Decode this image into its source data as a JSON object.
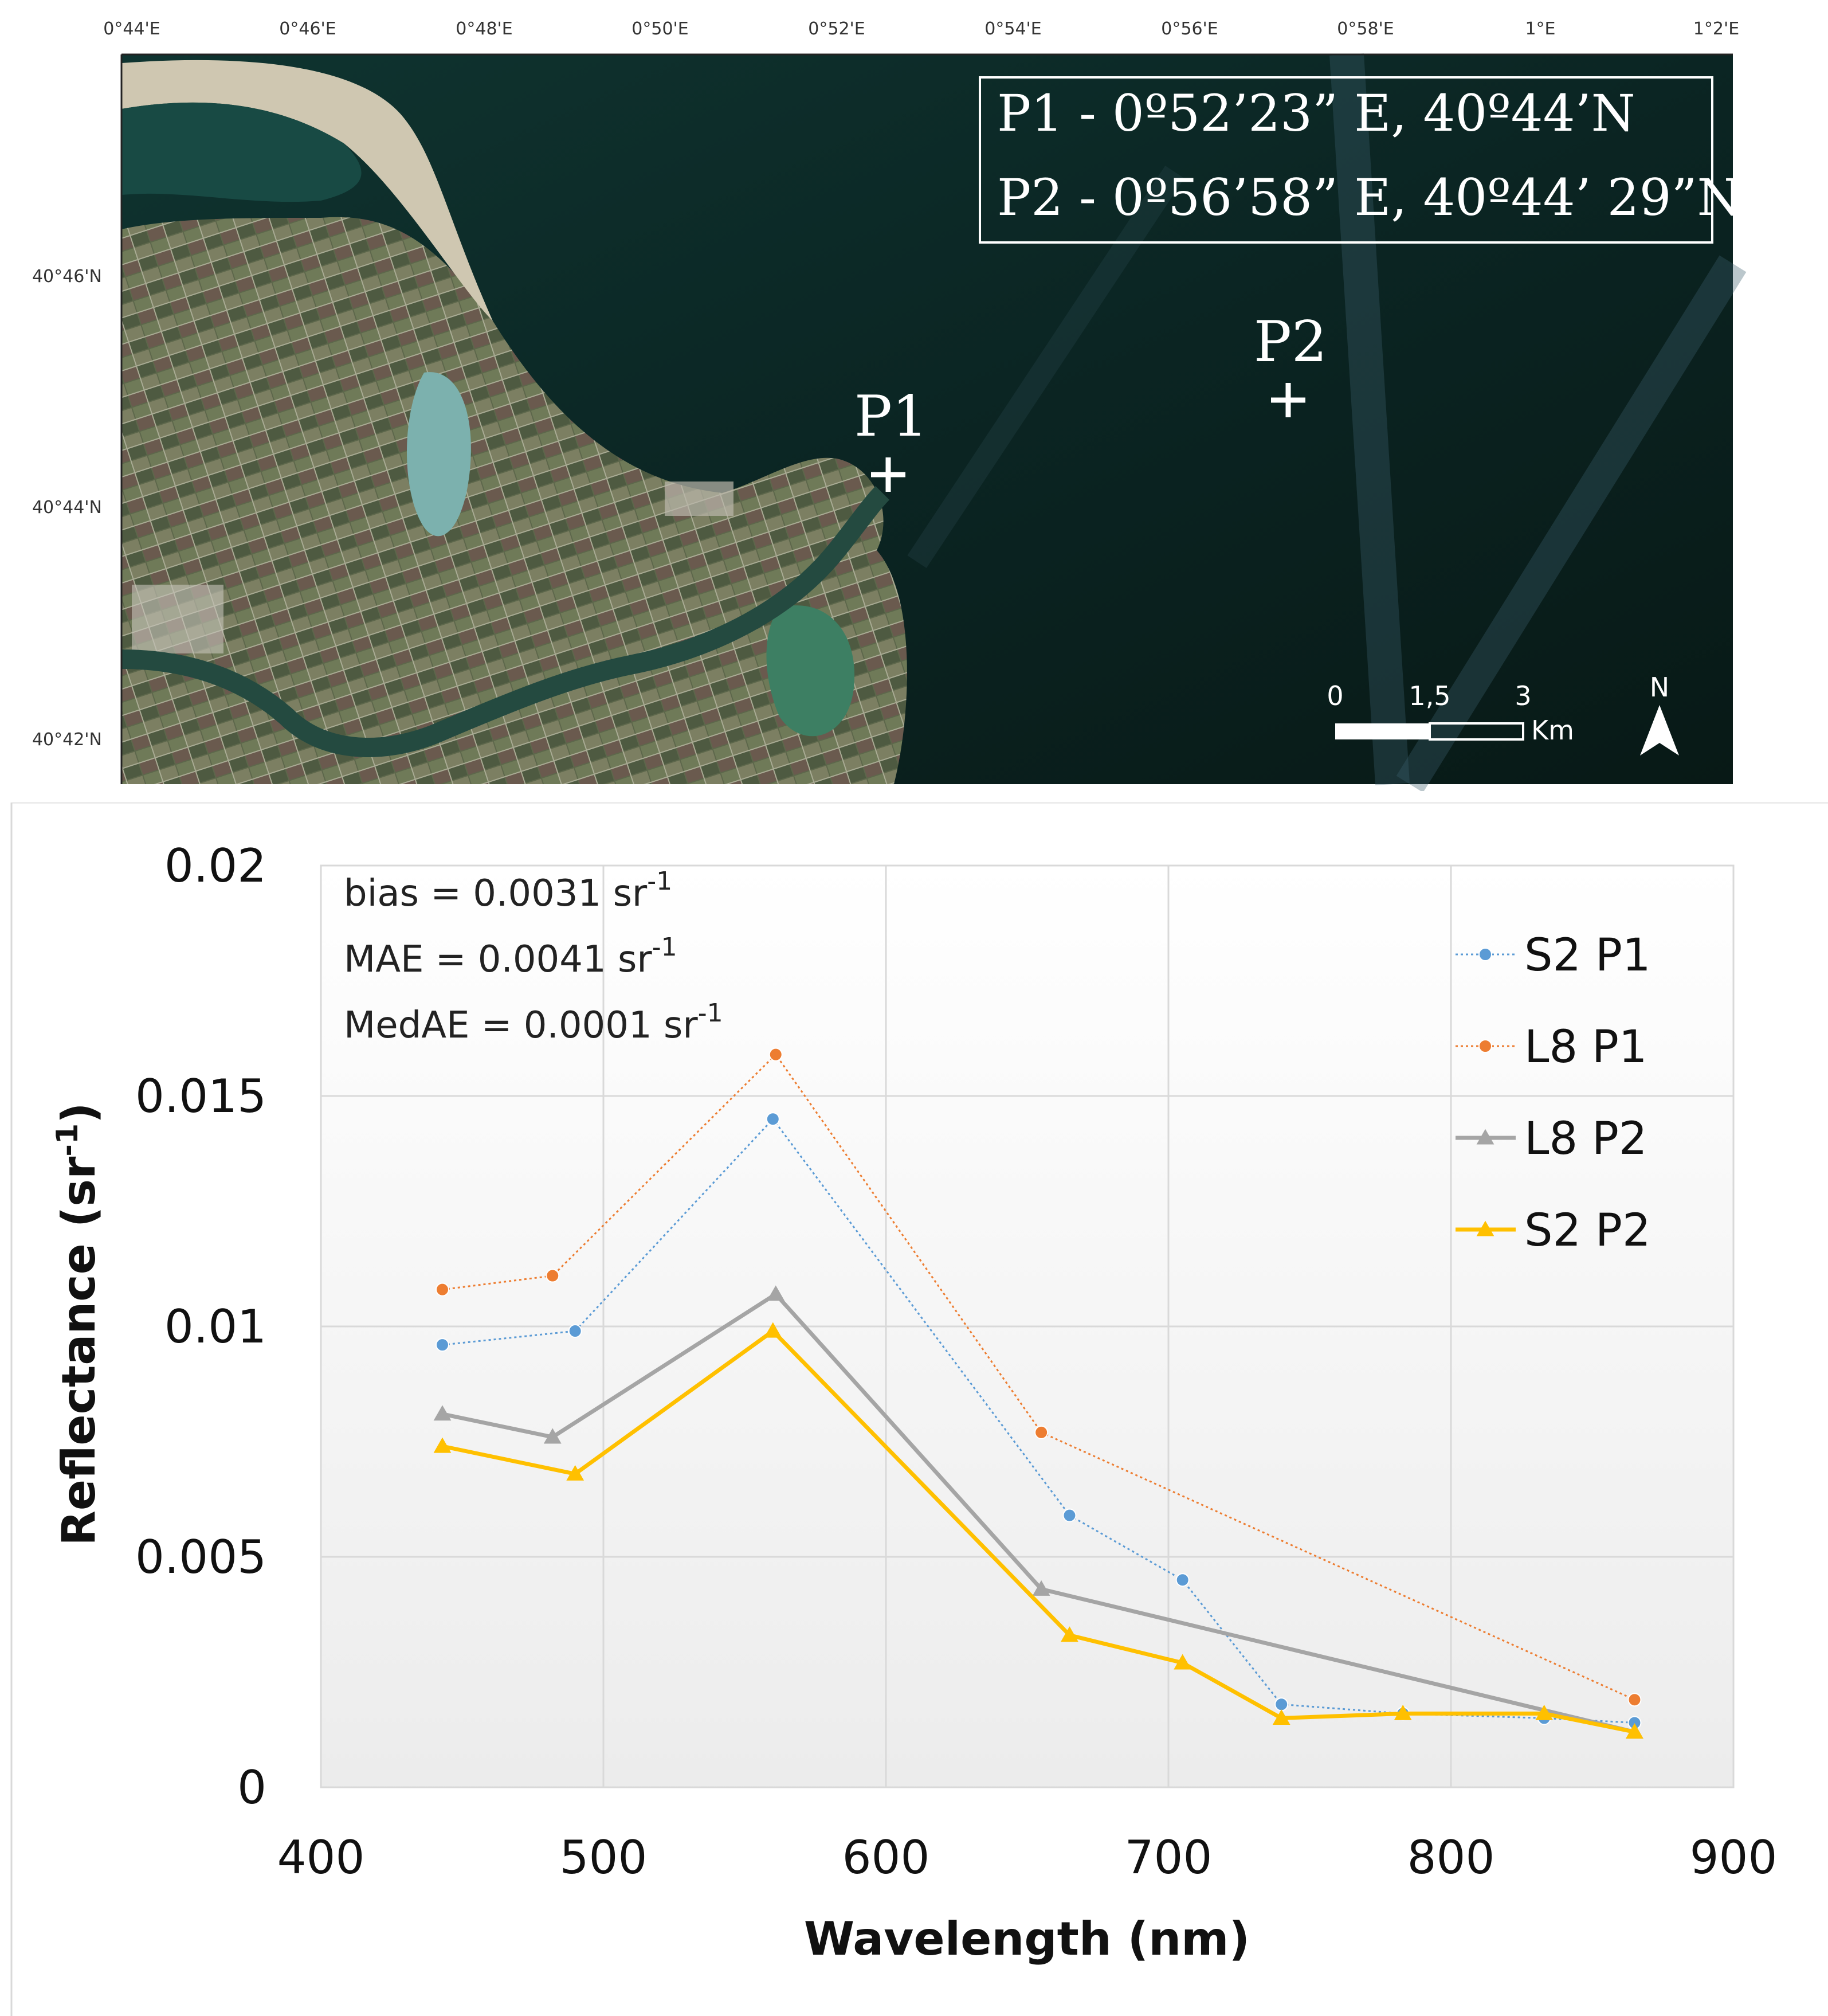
{
  "map": {
    "lon_ticks": [
      "0°44'E",
      "0°46'E",
      "0°48'E",
      "0°50'E",
      "0°52'E",
      "0°54'E",
      "0°56'E",
      "0°58'E",
      "1°E",
      "1°2'E"
    ],
    "lat_ticks": [
      "40°46'N",
      "40°44'N",
      "40°42'N"
    ],
    "points": [
      {
        "label": "P1",
        "coords": "P1 - 0º52’23” E, 40º44’N"
      },
      {
        "label": "P2",
        "coords": "P2 - 0º56’58” E, 40º44’ 29”N"
      }
    ],
    "scale_bar": {
      "labels": [
        "0",
        "1,5",
        "3"
      ],
      "unit": "Km"
    },
    "north_label": "N",
    "colors": {
      "sea": "#0d2a27",
      "land": "#5f6a4c",
      "sand": "#c9c2ad",
      "lagoon": "#7fb0ae"
    }
  },
  "chart_data": {
    "type": "line",
    "xlabel": "Wavelength (nm)",
    "ylabel": "Reflectance (sr",
    "ylabel_sup": "-1",
    "ylabel_close": ")",
    "xlim": [
      400,
      900
    ],
    "ylim": [
      0,
      0.02
    ],
    "x_ticks": [
      400,
      500,
      600,
      700,
      800,
      900
    ],
    "y_ticks": [
      0,
      0.005,
      0.01,
      0.015,
      0.02
    ],
    "y_tick_labels": [
      "0",
      "0.005",
      "0.01",
      "0.015",
      "0.02"
    ],
    "grid": true,
    "legend_position": "right",
    "annotations": [
      {
        "text": "bias = 0.0031 sr",
        "sup": "-1"
      },
      {
        "text": "MAE = 0.0041 sr",
        "sup": "-1"
      },
      {
        "text": "MedAE = 0.0001 sr",
        "sup": "-1"
      }
    ],
    "series": [
      {
        "name": "S2 P1",
        "color": "#5b9bd5",
        "marker": "circle",
        "style": "dotted",
        "x": [
          443,
          490,
          560,
          665,
          705,
          740,
          783,
          833,
          865
        ],
        "y": [
          0.0096,
          0.0099,
          0.0145,
          0.0059,
          0.0045,
          0.0018,
          0.0016,
          0.0015,
          0.0014
        ]
      },
      {
        "name": "L8 P1",
        "color": "#ed7d31",
        "marker": "circle",
        "style": "dotted",
        "x": [
          443,
          482,
          561,
          655,
          865
        ],
        "y": [
          0.0108,
          0.0111,
          0.0159,
          0.0077,
          0.0019
        ]
      },
      {
        "name": "L8 P2",
        "color": "#a5a5a5",
        "marker": "triangle",
        "style": "solid",
        "x": [
          443,
          482,
          561,
          655,
          865
        ],
        "y": [
          0.0081,
          0.0076,
          0.0107,
          0.0043,
          0.0012
        ]
      },
      {
        "name": "S2 P2",
        "color": "#ffc000",
        "marker": "triangle",
        "style": "solid",
        "x": [
          443,
          490,
          560,
          665,
          705,
          740,
          783,
          833,
          865
        ],
        "y": [
          0.0074,
          0.0068,
          0.0099,
          0.0033,
          0.0027,
          0.0015,
          0.0016,
          0.0016,
          0.0012
        ]
      }
    ]
  }
}
